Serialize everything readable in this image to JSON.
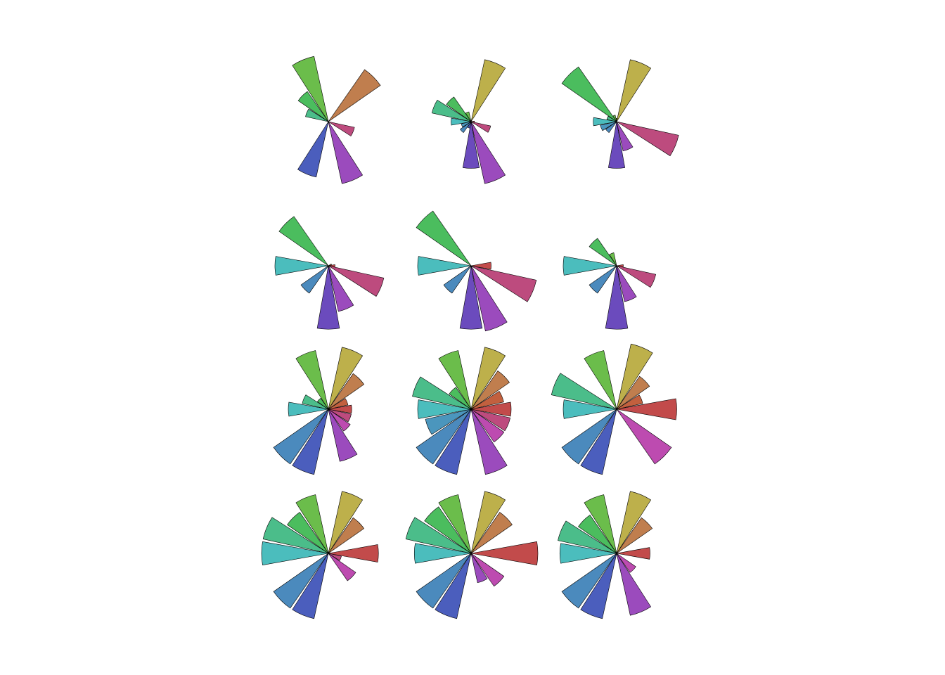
{
  "chart_data": [
    {
      "type": "polar_bar",
      "rlim": [
        0,
        100
      ],
      "values": [
        0,
        0,
        95,
        0,
        0,
        100,
        55,
        35,
        0,
        0,
        0,
        85,
        0,
        95,
        0,
        40
      ],
      "colors": [
        "#c24b4b",
        "#c2603e",
        "#c07e4e",
        "#bdb04b",
        "#8fbd4b",
        "#6bbd4b",
        "#4bbd5e",
        "#4bbd8a",
        "#4bbdbd",
        "#4b96bd",
        "#4b8abd",
        "#4b5ebd",
        "#6b4bbd",
        "#9b4bbd",
        "#bd4bb0",
        "#bd4b7e"
      ]
    },
    {
      "type": "polar_bar",
      "rlim": [
        0,
        100
      ],
      "values": [
        5,
        0,
        0,
        95,
        0,
        15,
        45,
        60,
        30,
        15,
        20,
        10,
        70,
        95,
        0,
        30
      ],
      "colors": [
        "#c24b4b",
        "#c2603e",
        "#c07e4e",
        "#bdb04b",
        "#8fbd4b",
        "#6bbd4b",
        "#4bbd5e",
        "#4bbd8a",
        "#4bbdbd",
        "#4b96bd",
        "#4b8abd",
        "#4b5ebd",
        "#6b4bbd",
        "#9b4bbd",
        "#bd4bb0",
        "#bd4b7e"
      ]
    },
    {
      "type": "polar_bar",
      "rlim": [
        0,
        100
      ],
      "values": [
        0,
        0,
        0,
        95,
        5,
        10,
        100,
        15,
        35,
        25,
        20,
        0,
        70,
        45,
        0,
        95
      ],
      "colors": [
        "#c24b4b",
        "#c2603e",
        "#c07e4e",
        "#bdb04b",
        "#8fbd4b",
        "#6bbd4b",
        "#4bbd5e",
        "#4bbd8a",
        "#4bbdbd",
        "#4b96bd",
        "#4b8abd",
        "#4b5ebd",
        "#6b4bbd",
        "#9b4bbd",
        "#bd4bb0",
        "#bd4b7e"
      ]
    },
    {
      "type": "polar_bar",
      "rlim": [
        0,
        100
      ],
      "values": [
        10,
        5,
        0,
        0,
        0,
        0,
        90,
        0,
        80,
        0,
        50,
        0,
        95,
        70,
        0,
        85
      ],
      "colors": [
        "#c24b4b",
        "#c2603e",
        "#c07e4e",
        "#bdb04b",
        "#8fbd4b",
        "#6bbd4b",
        "#4bbd5e",
        "#4bbd8a",
        "#4bbdbd",
        "#4b96bd",
        "#4b8abd",
        "#4b5ebd",
        "#6b4bbd",
        "#9b4bbd",
        "#bd4bb0",
        "#bd4b7e"
      ]
    },
    {
      "type": "polar_bar",
      "rlim": [
        0,
        100
      ],
      "values": [
        30,
        0,
        0,
        0,
        0,
        0,
        100,
        0,
        80,
        0,
        50,
        0,
        95,
        100,
        0,
        100
      ],
      "colors": [
        "#c24b4b",
        "#c2603e",
        "#c07e4e",
        "#bdb04b",
        "#8fbd4b",
        "#6bbd4b",
        "#4bbd5e",
        "#4bbd8a",
        "#4bbdbd",
        "#4b96bd",
        "#4b8abd",
        "#4b5ebd",
        "#6b4bbd",
        "#9b4bbd",
        "#bd4bb0",
        "#bd4b7e"
      ]
    },
    {
      "type": "polar_bar",
      "rlim": [
        0,
        100
      ],
      "values": [
        10,
        0,
        0,
        0,
        0,
        20,
        50,
        0,
        80,
        0,
        50,
        0,
        95,
        55,
        0,
        60
      ],
      "colors": [
        "#c24b4b",
        "#c2603e",
        "#c07e4e",
        "#bdb04b",
        "#8fbd4b",
        "#6bbd4b",
        "#4bbd5e",
        "#4bbd8a",
        "#4bbdbd",
        "#4b96bd",
        "#4b8abd",
        "#4b5ebd",
        "#6b4bbd",
        "#9b4bbd",
        "#bd4bb0",
        "#bd4b7e"
      ]
    },
    {
      "type": "polar_bar",
      "rlim": [
        0,
        100
      ],
      "values": [
        35,
        30,
        65,
        95,
        0,
        90,
        20,
        40,
        60,
        0,
        100,
        100,
        0,
        80,
        40,
        35
      ],
      "colors": [
        "#c24b4b",
        "#c2603e",
        "#c07e4e",
        "#bdb04b",
        "#8fbd4b",
        "#6bbd4b",
        "#4bbd5e",
        "#4bbd8a",
        "#4bbdbd",
        "#4b96bd",
        "#4b8abd",
        "#4b5ebd",
        "#6b4bbd",
        "#9b4bbd",
        "#bd4bb0",
        "#bd4b7e"
      ]
    },
    {
      "type": "polar_bar",
      "rlim": [
        0,
        100
      ],
      "values": [
        60,
        50,
        70,
        95,
        0,
        90,
        40,
        90,
        80,
        70,
        100,
        100,
        0,
        100,
        60,
        60
      ],
      "colors": [
        "#c24b4b",
        "#c2603e",
        "#c07e4e",
        "#bdb04b",
        "#8fbd4b",
        "#6bbd4b",
        "#4bbd5e",
        "#4bbd8a",
        "#4bbdbd",
        "#4b96bd",
        "#4b8abd",
        "#4b5ebd",
        "#6b4bbd",
        "#9b4bbd",
        "#bd4bb0",
        "#bd4b7e"
      ]
    },
    {
      "type": "polar_bar",
      "rlim": [
        0,
        100
      ],
      "values": [
        90,
        40,
        60,
        100,
        0,
        90,
        0,
        100,
        80,
        0,
        100,
        100,
        0,
        0,
        100,
        0
      ],
      "colors": [
        "#c24b4b",
        "#c2603e",
        "#c07e4e",
        "#bdb04b",
        "#8fbd4b",
        "#6bbd4b",
        "#4bbd5e",
        "#4bbd8a",
        "#4bbdbd",
        "#4b96bd",
        "#4b8abd",
        "#4b5ebd",
        "#6b4bbd",
        "#9b4bbd",
        "#bd4bb0",
        "#bd4b7e"
      ]
    },
    {
      "type": "polar_bar",
      "rlim": [
        0,
        100
      ],
      "values": [
        75,
        0,
        65,
        95,
        0,
        90,
        75,
        100,
        100,
        0,
        100,
        100,
        0,
        0,
        50,
        20
      ],
      "colors": [
        "#c24b4b",
        "#c2603e",
        "#c07e4e",
        "#bdb04b",
        "#8fbd4b",
        "#6bbd4b",
        "#4bbd5e",
        "#4bbd8a",
        "#4bbdbd",
        "#4b96bd",
        "#4b8abd",
        "#4b5ebd",
        "#6b4bbd",
        "#9b4bbd",
        "#bd4bb0",
        "#bd4b7e"
      ]
    },
    {
      "type": "polar_bar",
      "rlim": [
        0,
        100
      ],
      "values": [
        100,
        0,
        75,
        95,
        0,
        90,
        85,
        100,
        85,
        0,
        100,
        100,
        0,
        45,
        60,
        0
      ],
      "colors": [
        "#c24b4b",
        "#c2603e",
        "#c07e4e",
        "#bdb04b",
        "#8fbd4b",
        "#6bbd4b",
        "#4bbd5e",
        "#4bbd8a",
        "#4bbdbd",
        "#4b96bd",
        "#4b8abd",
        "#4b5ebd",
        "#6b4bbd",
        "#9b4bbd",
        "#bd4bb0",
        "#bd4b7e"
      ]
    },
    {
      "type": "polar_bar",
      "rlim": [
        0,
        100
      ],
      "values": [
        50,
        0,
        65,
        95,
        0,
        90,
        70,
        90,
        85,
        0,
        100,
        100,
        0,
        95,
        35,
        0
      ],
      "colors": [
        "#c24b4b",
        "#c2603e",
        "#c07e4e",
        "#bdb04b",
        "#8fbd4b",
        "#6bbd4b",
        "#4bbd5e",
        "#4bbd8a",
        "#4bbdbd",
        "#4b96bd",
        "#4b8abd",
        "#4b5ebd",
        "#6b4bbd",
        "#9b4bbd",
        "#bd4bb0",
        "#bd4b7e"
      ]
    }
  ]
}
